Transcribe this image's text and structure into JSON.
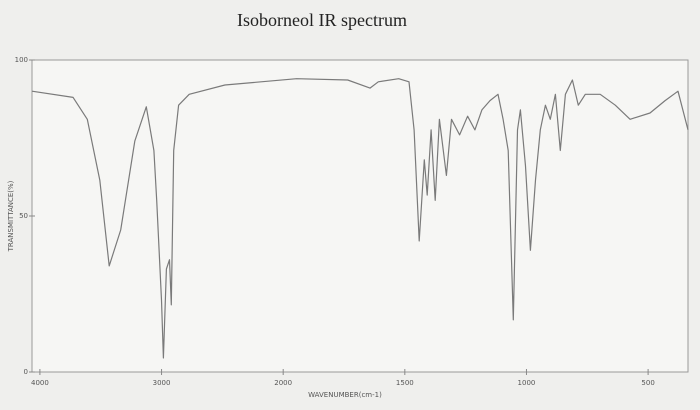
{
  "chart_data": {
    "type": "line",
    "title": "Isoborneol IR spectrum",
    "x_label": "WAVENUMBER(cm-1)",
    "y_label": "TRANSMITTANCE(%)",
    "x": [
      4065,
      3727,
      3610,
      3508,
      3430,
      3336,
      3220,
      3125,
      3063,
      3040,
      3000,
      2985,
      2960,
      2935,
      2920,
      2900,
      2860,
      2773,
      2479,
      1945,
      1735,
      1643,
      1609,
      1525,
      1483,
      1462,
      1441,
      1420,
      1408,
      1392,
      1375,
      1358,
      1329,
      1308,
      1275,
      1242,
      1212,
      1183,
      1150,
      1117,
      1096,
      1075,
      1054,
      1037,
      1025,
      1004,
      984,
      963,
      943,
      922,
      902,
      881,
      861,
      840,
      811,
      787,
      758,
      697,
      635,
      574,
      492,
      430,
      377,
      336
    ],
    "values": [
      90,
      88,
      81,
      61.5,
      34,
      45.5,
      74,
      85,
      71,
      55,
      23,
      4.5,
      33,
      36,
      21.5,
      71,
      85.5,
      89,
      92,
      94,
      93.6,
      91,
      93,
      94,
      93,
      77.6,
      42,
      68,
      56.7,
      77.6,
      55,
      81,
      63,
      81,
      76,
      82,
      77.6,
      84,
      87,
      89,
      81,
      71,
      16.7,
      77.6,
      84,
      66,
      39,
      61.5,
      77.6,
      85.5,
      81,
      89,
      71,
      89,
      93.6,
      85.5,
      89,
      89,
      85.5,
      81,
      83,
      87,
      90,
      77.6
    ],
    "color": "#7a7a7a",
    "xlim": [
      4065,
      336
    ],
    "xticks": [
      4000,
      3000,
      2000,
      1500,
      1000,
      500
    ],
    "ylim": [
      0,
      100
    ],
    "yticks": [
      0,
      50,
      100
    ]
  }
}
